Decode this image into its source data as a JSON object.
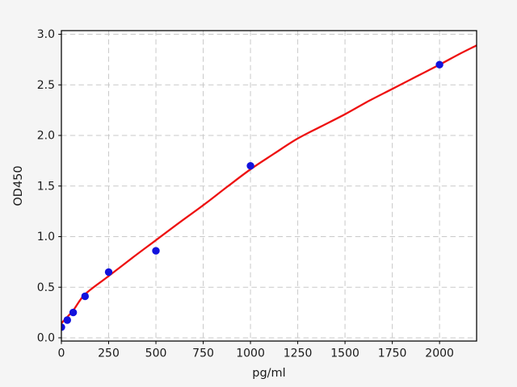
{
  "figure": {
    "background_color": "#f5f5f5",
    "plot_background_color": "#ffffff",
    "grid_color": "#c9c9c9",
    "spine_color": "#000000",
    "tick_color": "#000000",
    "text_color": "#1a1a1a"
  },
  "chart_data": {
    "type": "scatter",
    "title": "",
    "xlabel": "pg/ml",
    "ylabel": "OD450",
    "xlim": [
      0,
      2196
    ],
    "ylim": [
      -0.032,
      3.036
    ],
    "grid": true,
    "grid_style": "dashed",
    "legend": "none",
    "x_ticks": [
      0,
      250,
      500,
      750,
      1000,
      1250,
      1500,
      1750,
      2000
    ],
    "x_tick_labels": [
      "0",
      "250",
      "500",
      "750",
      "1000",
      "1250",
      "1500",
      "1750",
      "2000"
    ],
    "y_ticks": [
      0.0,
      0.5,
      1.0,
      1.5,
      2.0,
      2.5,
      3.0
    ],
    "y_tick_labels": [
      "0.0",
      "0.5",
      "1.0",
      "1.5",
      "2.0",
      "2.5",
      "3.0"
    ],
    "series": [
      {
        "name": "standard-points",
        "type": "scatter",
        "marker": "circle",
        "color": "#1212dd",
        "x": [
          0,
          31.25,
          62.5,
          125,
          250,
          500,
          1000,
          2000
        ],
        "y": [
          0.105,
          0.175,
          0.25,
          0.41,
          0.65,
          0.86,
          1.7,
          2.7
        ]
      },
      {
        "name": "fit-curve",
        "type": "line",
        "color": "#ee1111",
        "x": [
          0,
          62,
          125,
          250,
          375,
          500,
          625,
          750,
          875,
          1000,
          1125,
          1250,
          1375,
          1500,
          1625,
          1750,
          1875,
          2000,
          2100,
          2196
        ],
        "y": [
          0.145,
          0.27,
          0.43,
          0.61,
          0.79,
          0.965,
          1.14,
          1.31,
          1.49,
          1.665,
          1.82,
          1.97,
          2.09,
          2.21,
          2.34,
          2.46,
          2.58,
          2.7,
          2.8,
          2.89
        ]
      }
    ]
  }
}
